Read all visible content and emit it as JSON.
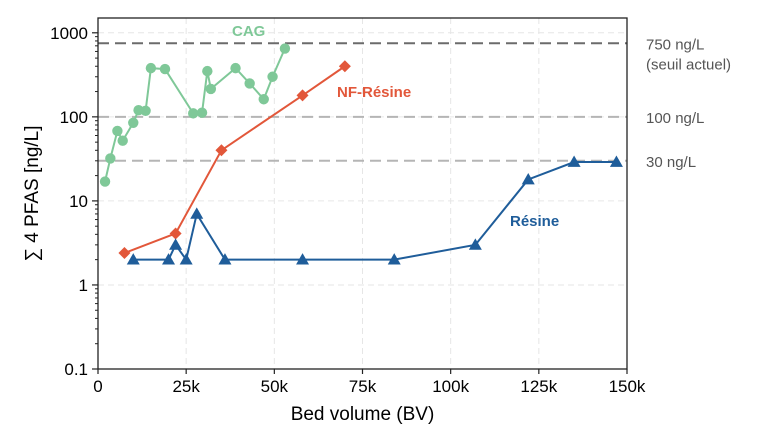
{
  "chart_data": {
    "type": "line",
    "title": "",
    "xlabel": "Bed volume (BV)",
    "ylabel": "∑ 4 PFAS [ng/L]",
    "xlim": [
      0,
      150000
    ],
    "ylim": [
      0.1,
      1500
    ],
    "yscale": "log",
    "grid": true,
    "x_ticks": [
      {
        "value": 0,
        "label": "0"
      },
      {
        "value": 25000,
        "label": "25k"
      },
      {
        "value": 50000,
        "label": "50k"
      },
      {
        "value": 75000,
        "label": "75k"
      },
      {
        "value": 100000,
        "label": "100k"
      },
      {
        "value": 125000,
        "label": "125k"
      },
      {
        "value": 150000,
        "label": "150k"
      }
    ],
    "y_ticks": [
      {
        "value": 0.1,
        "label": "0.1"
      },
      {
        "value": 1,
        "label": "1"
      },
      {
        "value": 10,
        "label": "10"
      },
      {
        "value": 100,
        "label": "100"
      },
      {
        "value": 1000,
        "label": "1000"
      }
    ],
    "reference_lines": [
      {
        "value": 750,
        "label_lines": [
          "750 ng/L",
          "(seuil actuel)"
        ],
        "color": "#6b6b6b"
      },
      {
        "value": 100,
        "label_lines": [
          "100 ng/L"
        ],
        "color": "#b5b5b5"
      },
      {
        "value": 30,
        "label_lines": [
          "30 ng/L"
        ],
        "color": "#b5b5b5"
      }
    ],
    "series": [
      {
        "name": "CAG",
        "color": "#7fc898",
        "marker": "circle",
        "points": [
          [
            2000,
            17
          ],
          [
            3500,
            32
          ],
          [
            5500,
            68
          ],
          [
            7000,
            52
          ],
          [
            10000,
            85
          ],
          [
            11500,
            120
          ],
          [
            13500,
            118
          ],
          [
            15000,
            380
          ],
          [
            19000,
            370
          ],
          [
            27000,
            110
          ],
          [
            29500,
            112
          ],
          [
            31000,
            350
          ],
          [
            32000,
            215
          ],
          [
            39000,
            380
          ],
          [
            43000,
            250
          ],
          [
            47000,
            162
          ],
          [
            49500,
            300
          ],
          [
            53000,
            650
          ]
        ]
      },
      {
        "name": "NF-Résine",
        "color": "#e2573a",
        "marker": "diamond",
        "points": [
          [
            7500,
            2.4
          ],
          [
            22000,
            4.1
          ],
          [
            35000,
            40
          ],
          [
            58000,
            180
          ],
          [
            70000,
            400
          ]
        ]
      },
      {
        "name": "Résine",
        "color": "#1f5d9a",
        "marker": "triangle",
        "points": [
          [
            10000,
            2
          ],
          [
            20000,
            2
          ],
          [
            22000,
            3
          ],
          [
            25000,
            2
          ],
          [
            28000,
            7
          ],
          [
            36000,
            2
          ],
          [
            58000,
            2
          ],
          [
            84000,
            2
          ],
          [
            107000,
            3
          ],
          [
            122000,
            18
          ],
          [
            135000,
            29
          ],
          [
            147000,
            29
          ]
        ]
      }
    ]
  }
}
